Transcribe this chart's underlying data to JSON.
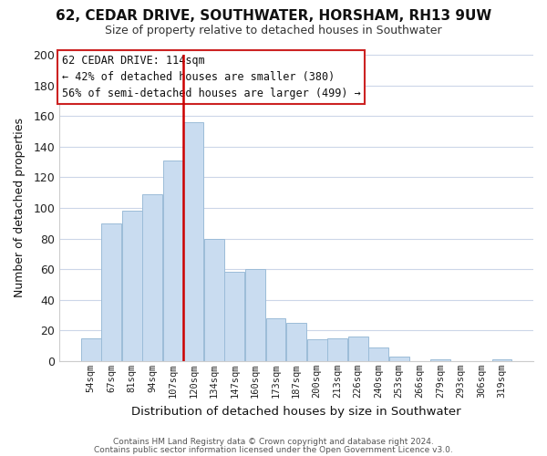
{
  "title_line1": "62, CEDAR DRIVE, SOUTHWATER, HORSHAM, RH13 9UW",
  "title_line2": "Size of property relative to detached houses in Southwater",
  "xlabel": "Distribution of detached houses by size in Southwater",
  "ylabel": "Number of detached properties",
  "bar_labels": [
    "54sqm",
    "67sqm",
    "81sqm",
    "94sqm",
    "107sqm",
    "120sqm",
    "134sqm",
    "147sqm",
    "160sqm",
    "173sqm",
    "187sqm",
    "200sqm",
    "213sqm",
    "226sqm",
    "240sqm",
    "253sqm",
    "266sqm",
    "279sqm",
    "293sqm",
    "306sqm",
    "319sqm"
  ],
  "bar_values": [
    15,
    90,
    98,
    109,
    131,
    156,
    80,
    58,
    60,
    28,
    25,
    14,
    15,
    16,
    9,
    3,
    0,
    1,
    0,
    0,
    1
  ],
  "bar_color": "#c9dcf0",
  "bar_edgecolor": "#9bbcd8",
  "vline_color": "#cc0000",
  "ylim": [
    0,
    200
  ],
  "yticks": [
    0,
    20,
    40,
    60,
    80,
    100,
    120,
    140,
    160,
    180,
    200
  ],
  "annotation_title": "62 CEDAR DRIVE: 114sqm",
  "annotation_line1": "← 42% of detached houses are smaller (380)",
  "annotation_line2": "56% of semi-detached houses are larger (499) →",
  "footer_line1": "Contains HM Land Registry data © Crown copyright and database right 2024.",
  "footer_line2": "Contains public sector information licensed under the Open Government Licence v3.0.",
  "background_color": "#ffffff",
  "grid_color": "#ccd6e8"
}
